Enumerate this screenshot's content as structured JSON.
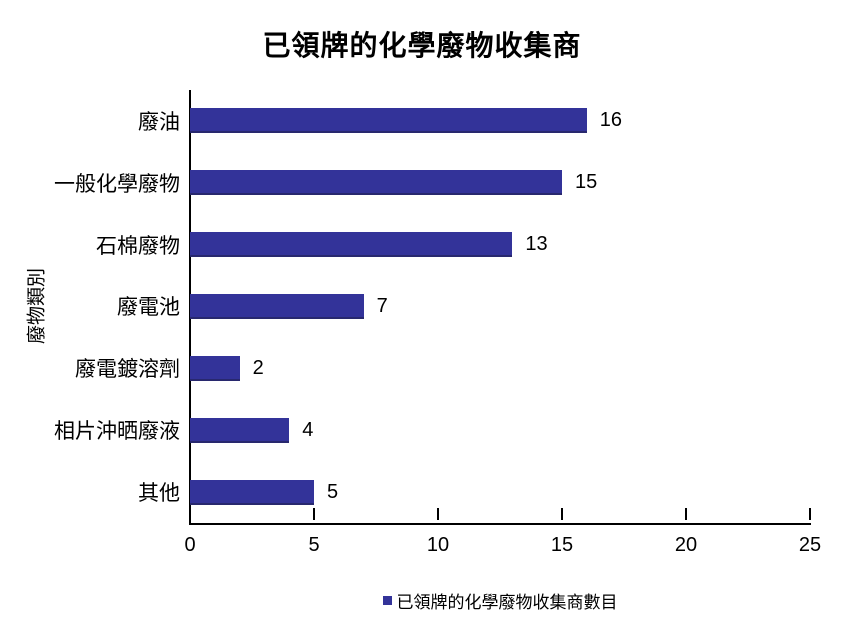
{
  "chart_data": {
    "type": "bar",
    "orientation": "horizontal",
    "title": "已領牌的化學廢物收集商",
    "ylabel": "廢物類別",
    "xlabel": "",
    "categories": [
      "廢油",
      "一般化學廢物",
      "石棉廢物",
      "廢電池",
      "廢電鍍溶劑",
      "相片沖晒廢液",
      "其他"
    ],
    "values": [
      16,
      15,
      13,
      7,
      2,
      4,
      5
    ],
    "xlim": [
      0,
      25
    ],
    "xticks": [
      0,
      5,
      10,
      15,
      20,
      25
    ],
    "grid": false,
    "data_labels": true,
    "legend_position": "bottom",
    "legend": [
      "已領牌的化學廢物收集商數目"
    ],
    "bar_color": "#333399",
    "axis_color": "#000000"
  }
}
